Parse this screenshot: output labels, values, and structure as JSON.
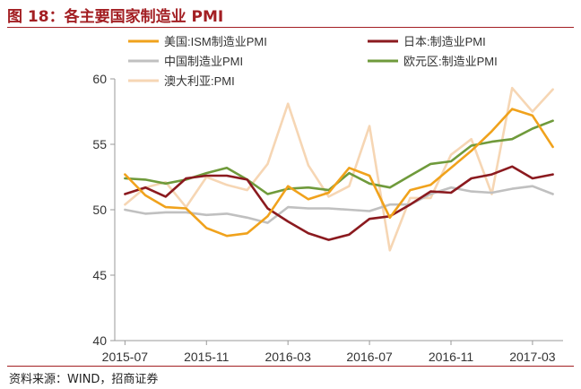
{
  "title": "图 18：各主要国家制造业 PMI",
  "source": "资料来源：WIND，招商证券",
  "chart_data": {
    "type": "line",
    "x": [
      "2015-07",
      "2015-08",
      "2015-09",
      "2015-10",
      "2015-11",
      "2015-12",
      "2016-01",
      "2016-02",
      "2016-03",
      "2016-04",
      "2016-05",
      "2016-06",
      "2016-07",
      "2016-08",
      "2016-09",
      "2016-10",
      "2016-11",
      "2016-12",
      "2017-01",
      "2017-02",
      "2017-03",
      "2017-04"
    ],
    "x_tick_labels": [
      "2015-07",
      "2015-11",
      "2016-03",
      "2016-07",
      "2016-11",
      "2017-03"
    ],
    "ylim": [
      40,
      60
    ],
    "y_ticks": [
      40,
      45,
      50,
      55,
      60
    ],
    "grid": false,
    "legend_placement": "top",
    "series": [
      {
        "name": "美国:ISM制造业PMI",
        "color": "#f0a21c",
        "values": [
          52.7,
          51.1,
          50.2,
          50.1,
          48.6,
          48.0,
          48.2,
          49.5,
          51.8,
          50.8,
          51.3,
          53.2,
          52.6,
          49.4,
          51.5,
          51.9,
          53.2,
          54.5,
          56.0,
          57.7,
          57.2,
          54.8
        ]
      },
      {
        "name": "日本:制造业PMI",
        "color": "#8b1a1f",
        "values": [
          51.2,
          51.7,
          51.0,
          52.4,
          52.6,
          52.6,
          52.3,
          50.1,
          49.1,
          48.2,
          47.7,
          48.1,
          49.3,
          49.5,
          50.4,
          51.4,
          51.3,
          52.4,
          52.7,
          53.3,
          52.4,
          52.7
        ]
      },
      {
        "name": "中国制造业PMI",
        "color": "#c0c0c0",
        "values": [
          50.0,
          49.7,
          49.8,
          49.8,
          49.6,
          49.7,
          49.4,
          49.0,
          50.2,
          50.1,
          50.1,
          50.0,
          49.9,
          50.4,
          50.4,
          51.2,
          51.7,
          51.4,
          51.3,
          51.6,
          51.8,
          51.2
        ]
      },
      {
        "name": "欧元区:制造业PMI",
        "color": "#6f9a3b",
        "values": [
          52.4,
          52.3,
          52.0,
          52.3,
          52.8,
          53.2,
          52.3,
          51.2,
          51.6,
          51.7,
          51.5,
          52.8,
          52.0,
          51.7,
          52.6,
          53.5,
          53.7,
          54.9,
          55.2,
          55.4,
          56.2,
          56.8
        ]
      },
      {
        "name": "澳大利亚:PMI",
        "color": "#f6d6b4",
        "values": [
          50.4,
          51.7,
          52.1,
          50.2,
          52.5,
          51.9,
          51.5,
          53.5,
          58.1,
          53.4,
          51.0,
          51.8,
          56.4,
          46.9,
          50.9,
          50.9,
          54.2,
          55.4,
          51.2,
          59.3,
          57.5,
          59.2
        ]
      }
    ]
  }
}
